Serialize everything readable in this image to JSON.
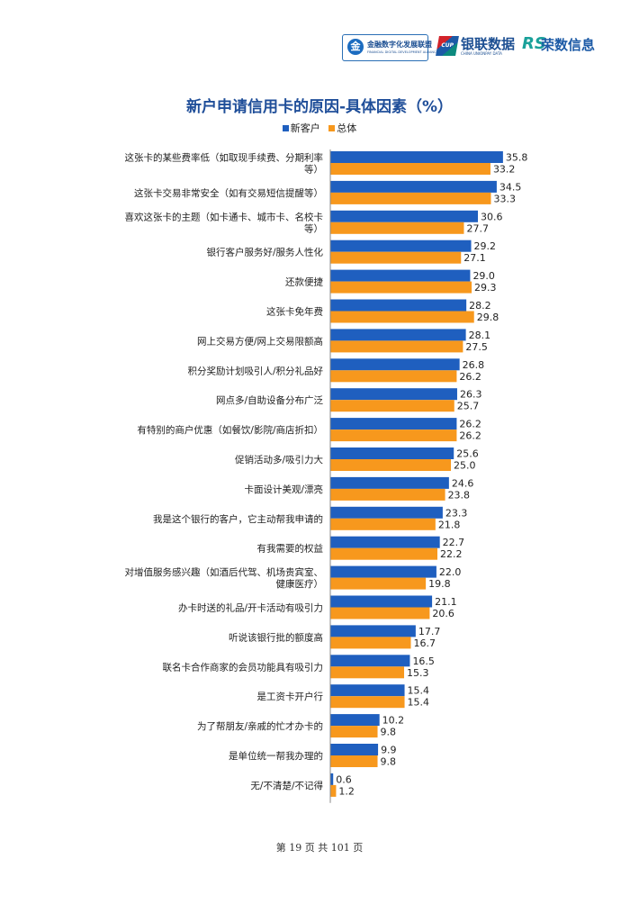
{
  "header": {
    "alliance_logo": {
      "mark": "金",
      "name": "金融数字化发展联盟",
      "sub": "FINANCIAL DIGITAL DEVELOPMENT ALLIANCE"
    },
    "cup_logo": {
      "badge": "CUP DATA",
      "name": "银联数据",
      "sub": "CHINA UNIONPAY DATA"
    },
    "rs_logo": {
      "mark": "RS",
      "name": "荣数信息"
    }
  },
  "chart_data": {
    "type": "bar",
    "orientation": "horizontal",
    "title": "新户申请信用卡的原因-具体因素（%）",
    "legend_position": "top",
    "grid": false,
    "xlim": [
      0,
      40
    ],
    "categories": [
      "这张卡的某些费率低（如取现手续费、分期利率等）",
      "这张卡交易非常安全（如有交易短信提醒等）",
      "喜欢这张卡的主题（如卡通卡、城市卡、名校卡等）",
      "银行客户服务好/服务人性化",
      "还款便捷",
      "这张卡免年费",
      "网上交易方便/网上交易限额高",
      "积分奖励计划吸引人/积分礼品好",
      "网点多/自助设备分布广泛",
      "有特别的商户优惠（如餐饮/影院/商店折扣）",
      "促销活动多/吸引力大",
      "卡面设计美观/漂亮",
      "我是这个银行的客户，它主动帮我申请的",
      "有我需要的权益",
      "对增值服务感兴趣（如酒后代驾、机场贵宾室、健康医疗）",
      "办卡时送的礼品/开卡活动有吸引力",
      "听说该银行批的额度高",
      "联名卡合作商家的会员功能具有吸引力",
      "是工资卡开户行",
      "为了帮朋友/亲戚的忙才办卡的",
      "是单位统一帮我办理的",
      "无/不清楚/不记得"
    ],
    "category_lines": [
      [
        "这张卡的某些费率低（如取现手续费、分期利率",
        "等）"
      ],
      [
        "这张卡交易非常安全（如有交易短信提醒等）"
      ],
      [
        "喜欢这张卡的主题（如卡通卡、城市卡、名校卡",
        "等）"
      ],
      [
        "银行客户服务好/服务人性化"
      ],
      [
        "还款便捷"
      ],
      [
        "这张卡免年费"
      ],
      [
        "网上交易方便/网上交易限额高"
      ],
      [
        "积分奖励计划吸引人/积分礼品好"
      ],
      [
        "网点多/自助设备分布广泛"
      ],
      [
        "有特别的商户优惠（如餐饮/影院/商店折扣）"
      ],
      [
        "促销活动多/吸引力大"
      ],
      [
        "卡面设计美观/漂亮"
      ],
      [
        "我是这个银行的客户，它主动帮我申请的"
      ],
      [
        "有我需要的权益"
      ],
      [
        "对增值服务感兴趣（如酒后代驾、机场贵宾室、",
        "健康医疗）"
      ],
      [
        "办卡时送的礼品/开卡活动有吸引力"
      ],
      [
        "听说该银行批的额度高"
      ],
      [
        "联名卡合作商家的会员功能具有吸引力"
      ],
      [
        "是工资卡开户行"
      ],
      [
        "为了帮朋友/亲戚的忙才办卡的"
      ],
      [
        "是单位统一帮我办理的"
      ],
      [
        "无/不清楚/不记得"
      ]
    ],
    "series": [
      {
        "name": "新客户",
        "color": "#1f5fbf",
        "values": [
          35.8,
          34.5,
          30.6,
          29.2,
          29.0,
          28.2,
          28.1,
          26.8,
          26.3,
          26.2,
          25.6,
          24.6,
          23.3,
          22.7,
          22.0,
          21.1,
          17.7,
          16.5,
          15.4,
          10.2,
          9.9,
          0.6
        ]
      },
      {
        "name": "总体",
        "color": "#f7981d",
        "values": [
          33.2,
          33.3,
          27.7,
          27.1,
          29.3,
          29.8,
          27.5,
          26.2,
          25.7,
          26.2,
          25.0,
          23.8,
          21.8,
          22.2,
          19.8,
          20.6,
          16.7,
          15.3,
          15.4,
          9.8,
          9.8,
          1.2
        ]
      }
    ]
  },
  "footer": {
    "page_text": "第 19 页 共 101 页"
  }
}
